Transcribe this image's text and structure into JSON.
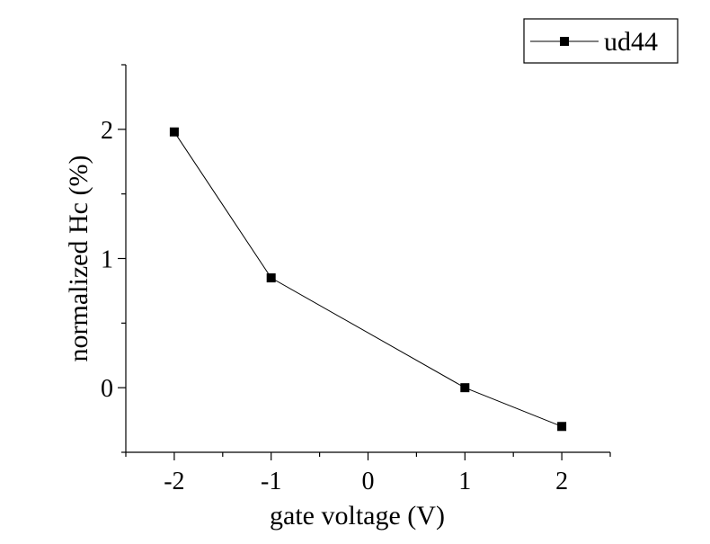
{
  "chart_data": {
    "type": "line",
    "title": "",
    "xlabel": "gate voltage (V)",
    "ylabel": "normalized Hc (%)",
    "xlim": [
      -2.5,
      2.5
    ],
    "ylim": [
      -0.5,
      2.5
    ],
    "xticks": [
      -2,
      -1,
      0,
      1,
      2
    ],
    "xtick_labels": [
      "-2",
      "-1",
      "0",
      "1",
      "2"
    ],
    "yticks": [
      0,
      1,
      2
    ],
    "ytick_labels": [
      "0",
      "1",
      "2"
    ],
    "grid": false,
    "legend_position": "top-right",
    "series": [
      {
        "name": "ud44",
        "marker": "square",
        "color": "#000000",
        "x": [
          -2,
          -1,
          1,
          2
        ],
        "y": [
          1.98,
          0.85,
          0.0,
          -0.3
        ]
      }
    ]
  }
}
